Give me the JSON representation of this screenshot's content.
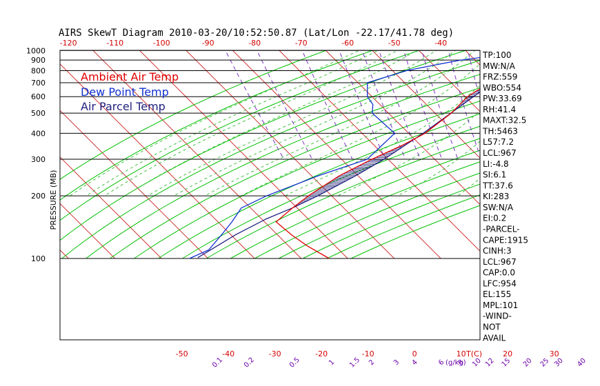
{
  "title": "AIRS SkewT Diagram 2010-03-20/10:52:50.87 (Lat/Lon -22.17/41.78 deg)",
  "colors": {
    "ambient": "#e00000",
    "dewpoint": "#1030d0",
    "parcel": "#202080",
    "isotherm": "#d03030",
    "dry_adiabat": "#00c000",
    "moist_adiabat": "#40c040",
    "mixing_ratio": "#7a30c0",
    "isobar": "#000000",
    "hatch": "#303080"
  },
  "legend": [
    "Ambient Air Temp",
    "Dew Point Temp",
    "Air Parcel Temp"
  ],
  "indices": [
    "TP:100",
    "MW:N/A",
    "FRZ:559",
    "WBO:554",
    "PW:33.69",
    "RH:41.4",
    "MAXT:32.5",
    "TH:5463",
    "L57:7.2",
    "LCL:967",
    "LI:-4.8",
    "SI:6.1",
    "TT:37.6",
    "KI:283",
    "SW:N/A",
    "EI:0.2",
    "-PARCEL-",
    "CAPE:1915",
    "CINH:3",
    "LCL:967",
    "CAP:0.0",
    "LFC:954",
    "EL:155",
    "MPL:101",
    "-WIND-",
    "NOT",
    "AVAIL"
  ],
  "chart_data": {
    "type": "line",
    "title": "AIRS SkewT Diagram 2010-03-20/10:52:50.87 (Lat/Lon -22.17/41.78 deg)",
    "ylabel": "PRESSURE (MB)",
    "xlabel": "T(C)",
    "y_scale": "log",
    "ylim": [
      1050,
      100
    ],
    "pressure_ticks": [
      100,
      200,
      300,
      400,
      500,
      600,
      700,
      800,
      900,
      1000
    ],
    "top_temp_ticks": [
      -120,
      -110,
      -100,
      -90,
      -80,
      -70,
      -60,
      -50,
      -40
    ],
    "bottom_temp_ticks": [
      -50,
      -40,
      -30,
      -20,
      -10,
      0,
      10,
      20,
      30
    ],
    "mixing_ratio_ticks": [
      "0.1",
      "0.2",
      "0.5",
      "1",
      "1.5",
      "2",
      "3",
      "4",
      "6",
      "8",
      "10",
      "12",
      "15",
      "20",
      "25",
      "30",
      "40"
    ],
    "mixing_ratio_unit": "(g/kg)",
    "series": [
      {
        "name": "Ambient Air Temp",
        "points": [
          [
            1000,
            28.5
          ],
          [
            980,
            25.0
          ],
          [
            950,
            23.0
          ],
          [
            900,
            20.8
          ],
          [
            850,
            17.5
          ],
          [
            800,
            14.0
          ],
          [
            700,
            8.8
          ],
          [
            650,
            4.5
          ],
          [
            600,
            0.5
          ],
          [
            500,
            -6.5
          ],
          [
            400,
            -16.5
          ],
          [
            350,
            -24.0
          ],
          [
            300,
            -33.5
          ],
          [
            250,
            -44.0
          ],
          [
            200,
            -55.0
          ],
          [
            175,
            -61.0
          ],
          [
            150,
            -67.5
          ],
          [
            130,
            -67.0
          ],
          [
            115,
            -66.0
          ],
          [
            100,
            -64.0
          ]
        ]
      },
      {
        "name": "Dew Point Temp",
        "points": [
          [
            1000,
            22.0
          ],
          [
            980,
            20.0
          ],
          [
            950,
            16.0
          ],
          [
            900,
            7.0
          ],
          [
            850,
            0.0
          ],
          [
            800,
            -7.0
          ],
          [
            700,
            -18.0
          ],
          [
            600,
            -21.0
          ],
          [
            550,
            -21.5
          ],
          [
            500,
            -23.5
          ],
          [
            400,
            -23.0
          ],
          [
            300,
            -34.5
          ],
          [
            250,
            -48.5
          ],
          [
            200,
            -64.0
          ],
          [
            175,
            -72.0
          ],
          [
            150,
            -77.0
          ],
          [
            130,
            -82.0
          ],
          [
            110,
            -88.0
          ],
          [
            100,
            -94.0
          ]
        ]
      },
      {
        "name": "Air Parcel Temp",
        "points": [
          [
            1000,
            28.5
          ],
          [
            967,
            22.2
          ],
          [
            954,
            21.7
          ],
          [
            900,
            19.8
          ],
          [
            850,
            17.6
          ],
          [
            800,
            15.0
          ],
          [
            700,
            9.0
          ],
          [
            600,
            1.8
          ],
          [
            500,
            -6.6
          ],
          [
            400,
            -16.9
          ],
          [
            300,
            -30.9
          ],
          [
            250,
            -40.5
          ],
          [
            200,
            -53.0
          ],
          [
            175,
            -61.0
          ],
          [
            155,
            -69.0
          ],
          [
            130,
            -79.0
          ],
          [
            101,
            -92.0
          ]
        ]
      }
    ]
  }
}
